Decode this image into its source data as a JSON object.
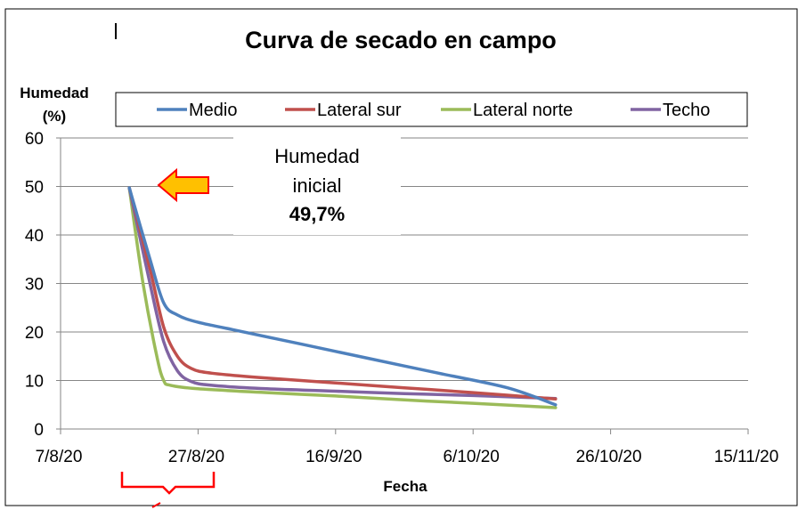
{
  "chart_data": {
    "type": "line",
    "title": "Curva de secado en campo",
    "xlabel": "Fecha",
    "ylabel_lines": [
      "Humedad",
      "(%)"
    ],
    "x_tick_labels": [
      "7/8/20",
      "27/8/20",
      "16/9/20",
      "6/10/20",
      "26/10/20",
      "15/11/20"
    ],
    "x_range_days": [
      0,
      100
    ],
    "ylim": [
      0,
      60
    ],
    "y_ticks": [
      0,
      10,
      20,
      30,
      40,
      50,
      60
    ],
    "grid": "horizontal",
    "legend_position": "top",
    "series": [
      {
        "name": "Medio",
        "color": "#4f81bd",
        "points": [
          [
            10,
            49.7
          ],
          [
            13,
            35
          ],
          [
            15,
            26
          ],
          [
            17,
            23.5
          ],
          [
            20,
            22
          ],
          [
            25,
            20.5
          ],
          [
            35,
            17.5
          ],
          [
            45,
            14.5
          ],
          [
            55,
            11.5
          ],
          [
            65,
            8.5
          ],
          [
            72,
            5
          ]
        ]
      },
      {
        "name": "Lateral sur",
        "color": "#c0504d",
        "points": [
          [
            10,
            49.7
          ],
          [
            13,
            33
          ],
          [
            15,
            21
          ],
          [
            17,
            15
          ],
          [
            19,
            12.5
          ],
          [
            22,
            11.5
          ],
          [
            30,
            10.5
          ],
          [
            40,
            9.5
          ],
          [
            50,
            8.5
          ],
          [
            60,
            7.5
          ],
          [
            72,
            6.2
          ]
        ]
      },
      {
        "name": "Lateral norte",
        "color": "#9bbb59",
        "points": [
          [
            10,
            49.7
          ],
          [
            12,
            30
          ],
          [
            14,
            15
          ],
          [
            15,
            10
          ],
          [
            16,
            9
          ],
          [
            20,
            8.3
          ],
          [
            30,
            7.5
          ],
          [
            40,
            6.8
          ],
          [
            50,
            6
          ],
          [
            60,
            5.3
          ],
          [
            72,
            4.4
          ]
        ]
      },
      {
        "name": "Techo",
        "color": "#8064a2",
        "points": [
          [
            10,
            49.7
          ],
          [
            13,
            30
          ],
          [
            15,
            18
          ],
          [
            17,
            12
          ],
          [
            19,
            9.8
          ],
          [
            22,
            9
          ],
          [
            30,
            8.3
          ],
          [
            40,
            7.8
          ],
          [
            50,
            7.3
          ],
          [
            60,
            6.9
          ],
          [
            72,
            6.3
          ]
        ]
      }
    ],
    "annotation": {
      "lines": [
        "Humedad",
        "inicial",
        "49,7%"
      ],
      "arrow_color": "#ffc000",
      "arrow_outline": "#ff0000"
    }
  }
}
